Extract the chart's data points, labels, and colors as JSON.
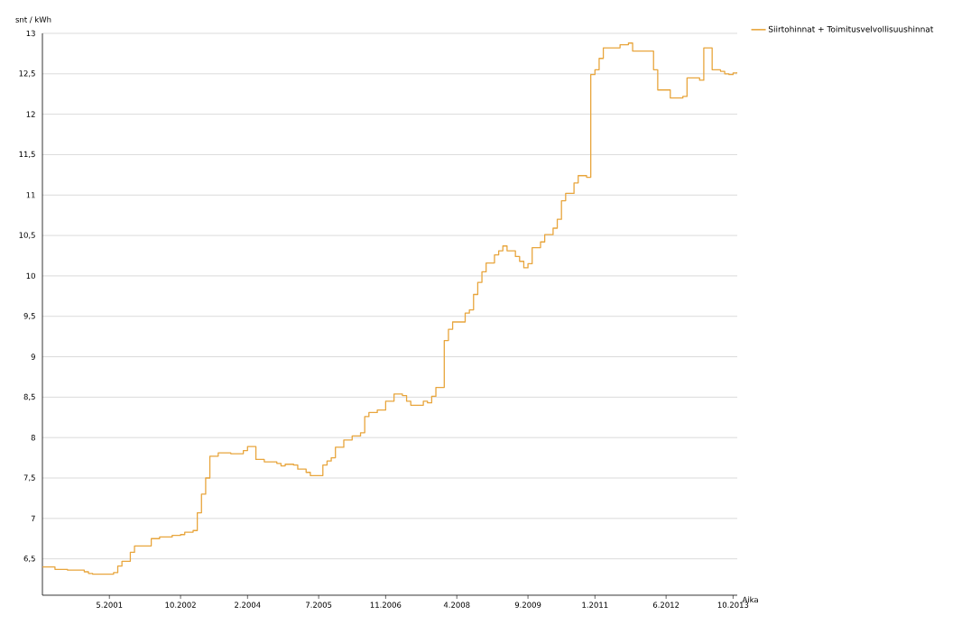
{
  "chart_data": {
    "type": "step",
    "ylabel": "snt / kWh",
    "xlabel": "Aika",
    "legend": "top right",
    "grid": "y",
    "xlim": [
      "2000-01",
      "2013-11"
    ],
    "ylim": [
      6.05,
      13
    ],
    "xticks": [
      {
        "value": "2001-05",
        "label": "5.2001"
      },
      {
        "value": "2002-10",
        "label": "10.2002"
      },
      {
        "value": "2004-02",
        "label": "2.2004"
      },
      {
        "value": "2005-07",
        "label": "7.2005"
      },
      {
        "value": "2006-11",
        "label": "11.2006"
      },
      {
        "value": "2008-04",
        "label": "4.2008"
      },
      {
        "value": "2009-09",
        "label": "9.2009"
      },
      {
        "value": "2011-01",
        "label": "1.2011"
      },
      {
        "value": "2012-06",
        "label": "6.2012"
      },
      {
        "value": "2013-10",
        "label": "10.2013"
      }
    ],
    "yticks": [
      {
        "value": 6.5,
        "label": "6,5"
      },
      7,
      {
        "value": 7.5,
        "label": "7,5"
      },
      8,
      {
        "value": 8.5,
        "label": "8,5"
      },
      9,
      {
        "value": 9.5,
        "label": "9,5"
      },
      10,
      {
        "value": 10.5,
        "label": "10,5"
      },
      11,
      {
        "value": 11.5,
        "label": "11,5"
      },
      12,
      {
        "value": 12.5,
        "label": "12,5"
      },
      13
    ],
    "x": [
      "2000-01",
      "2000-04",
      "2000-07",
      "2000-11",
      "2000-12",
      "2001-01",
      "2001-06",
      "2001-07",
      "2001-08",
      "2001-10",
      "2001-11",
      "2002-03",
      "2002-05",
      "2002-08",
      "2002-10",
      "2002-11",
      "2003-01",
      "2003-02",
      "2003-03",
      "2003-04",
      "2003-05",
      "2003-07",
      "2003-10",
      "2004-01",
      "2004-02",
      "2004-04",
      "2004-06",
      "2004-09",
      "2004-10",
      "2004-11",
      "2005-01",
      "2005-02",
      "2005-04",
      "2005-05",
      "2005-08",
      "2005-09",
      "2005-10",
      "2005-11",
      "2006-01",
      "2006-03",
      "2006-05",
      "2006-06",
      "2006-07",
      "2006-09",
      "2006-11",
      "2007-01",
      "2007-03",
      "2007-04",
      "2007-05",
      "2007-08",
      "2007-09",
      "2007-10",
      "2007-11",
      "2008-01",
      "2008-02",
      "2008-03",
      "2008-06",
      "2008-07",
      "2008-08",
      "2008-09",
      "2008-10",
      "2008-11",
      "2009-01",
      "2009-02",
      "2009-03",
      "2009-04",
      "2009-06",
      "2009-07",
      "2009-08",
      "2009-09",
      "2009-10",
      "2009-12",
      "2010-01",
      "2010-03",
      "2010-04",
      "2010-05",
      "2010-06",
      "2010-08",
      "2010-09",
      "2010-11",
      "2010-12",
      "2011-01",
      "2011-02",
      "2011-03",
      "2011-07",
      "2011-09",
      "2011-10",
      "2012-03",
      "2012-04",
      "2012-07",
      "2012-10",
      "2012-11",
      "2013-02",
      "2013-03",
      "2013-05",
      "2013-07",
      "2013-08",
      "2013-09",
      "2013-10",
      "2013-11"
    ],
    "series": [
      {
        "name": "Siirtohinnat + Toimitusvelvollisuushinnat",
        "color": "#e8a53c",
        "values": [
          6.4,
          6.37,
          6.36,
          6.34,
          6.32,
          6.31,
          6.33,
          6.41,
          6.47,
          6.58,
          6.66,
          6.75,
          6.77,
          6.79,
          6.8,
          6.83,
          6.85,
          7.07,
          7.3,
          7.5,
          7.77,
          7.81,
          7.8,
          7.84,
          7.89,
          7.73,
          7.7,
          7.68,
          7.65,
          7.67,
          7.66,
          7.61,
          7.57,
          7.53,
          7.66,
          7.71,
          7.75,
          7.88,
          7.97,
          8.02,
          8.06,
          8.26,
          8.31,
          8.34,
          8.45,
          8.54,
          8.52,
          8.45,
          8.4,
          8.45,
          8.43,
          8.51,
          8.62,
          9.2,
          9.34,
          9.43,
          9.54,
          9.58,
          9.77,
          9.92,
          10.05,
          10.16,
          10.26,
          10.31,
          10.37,
          10.31,
          10.24,
          10.18,
          10.1,
          10.15,
          10.35,
          10.42,
          10.51,
          10.59,
          10.7,
          10.93,
          11.02,
          11.15,
          11.24,
          11.22,
          12.49,
          12.55,
          12.69,
          12.82,
          12.86,
          12.88,
          12.78,
          12.55,
          12.3,
          12.2,
          12.22,
          12.45,
          12.42,
          12.82,
          12.55,
          12.53,
          12.5,
          12.49,
          12.51,
          12.52
        ]
      }
    ]
  }
}
